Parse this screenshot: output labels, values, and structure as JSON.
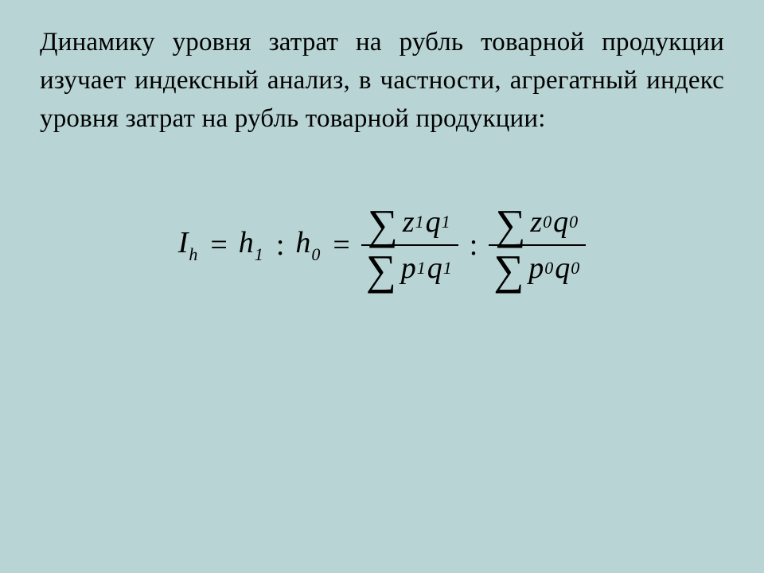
{
  "slide": {
    "background_color": "#b8d4d4",
    "text_color": "#000000",
    "font_family": "Times New Roman",
    "paragraph_text": "Динамику уровня затрат на рубль товарной продукции изучает индексный анализ, в частности, агрегатный индекс уровня затрат на рубль товарной продукции:",
    "paragraph_fontsize": 33,
    "paragraph_align": "justify",
    "formula": {
      "fontsize": 38,
      "style": "italic",
      "lhs_var": "I",
      "lhs_sub": "h",
      "eq": "=",
      "h1_var": "h",
      "h1_sub": "1",
      "colon": ":",
      "h0_var": "h",
      "h0_sub": "0",
      "sigma": "∑",
      "frac1": {
        "num_a": "z",
        "num_a_sub": "1",
        "num_b": "q",
        "num_b_sub": "1",
        "den_a": "p",
        "den_a_sub": "1",
        "den_b": "q",
        "den_b_sub": "1"
      },
      "frac2": {
        "num_a": "z",
        "num_a_sub": "0",
        "num_b": "q",
        "num_b_sub": "0",
        "den_a": "p",
        "den_a_sub": "0",
        "den_b": "q",
        "den_b_sub": "0"
      }
    }
  }
}
